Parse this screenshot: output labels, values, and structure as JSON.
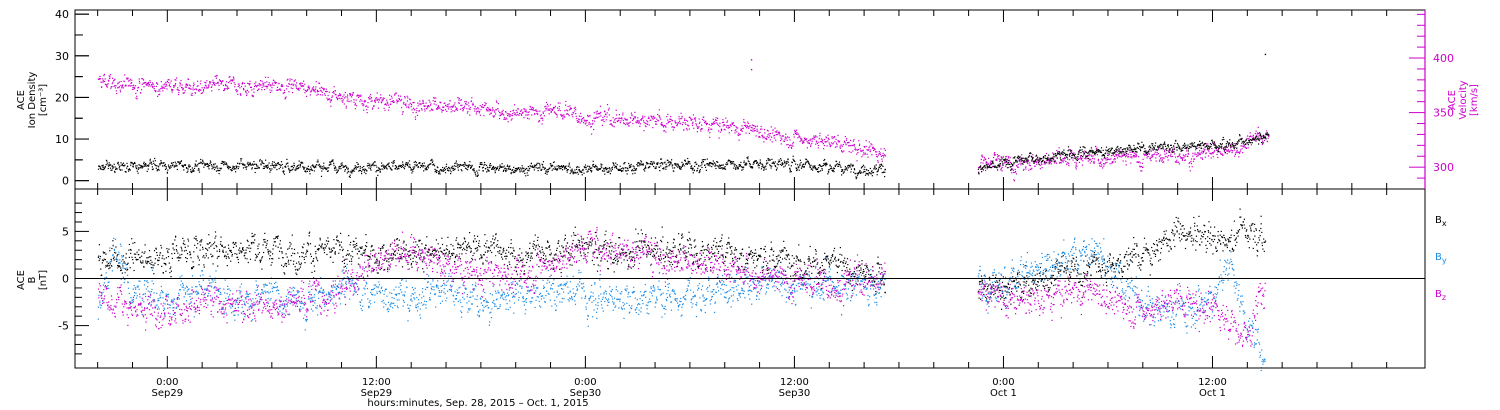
{
  "chart_data": [
    {
      "type": "scatter",
      "panel": "top",
      "ylabel_left": [
        "ACE",
        "Ion Density",
        "[cm⁻³]"
      ],
      "ylabel_right": [
        "ACE",
        "Velocity",
        "[km/s]"
      ],
      "left_ylim": [
        -2,
        41
      ],
      "left_yticks": [
        0,
        10,
        20,
        30,
        40
      ],
      "right_ylim": [
        280,
        444
      ],
      "right_yticks": [
        300,
        350,
        400
      ],
      "colors": {
        "density": "#000000",
        "velocity": "#cc00cc"
      },
      "gap_hours": [
        [
          41.2,
          46.5
        ]
      ],
      "series": [
        {
          "axis": "left",
          "points": [
            [
              -4,
              3.5
            ],
            [
              0,
              3.5
            ],
            [
              4,
              3.8
            ],
            [
              8,
              3.5
            ],
            [
              12,
              3.3
            ],
            [
              16,
              3.2
            ],
            [
              20,
              3.0
            ],
            [
              24,
              3.3
            ],
            [
              28,
              3.6
            ],
            [
              32,
              4.0
            ],
            [
              36,
              4.2
            ],
            [
              38,
              3.2
            ],
            [
              41,
              2.8
            ],
            [
              46.8,
              3.0
            ],
            [
              50,
              5.5
            ],
            [
              53,
              7.0
            ],
            [
              56,
              8.0
            ],
            [
              59,
              8.6
            ],
            [
              62,
              9.3
            ],
            [
              63.2,
              11.0
            ]
          ]
        },
        {
          "axis": "right",
          "points": [
            [
              -4,
              377
            ],
            [
              0,
              376
            ],
            [
              4,
              374
            ],
            [
              7,
              376
            ],
            [
              10,
              365
            ],
            [
              12,
              361
            ],
            [
              16,
              357
            ],
            [
              20,
              350
            ],
            [
              22,
              353
            ],
            [
              24,
              347
            ],
            [
              28,
              343
            ],
            [
              32,
              337
            ],
            [
              36,
              327
            ],
            [
              40,
              318
            ],
            [
              41,
              312
            ],
            [
              46.8,
              305
            ],
            [
              50,
              305
            ],
            [
              53,
              308
            ],
            [
              56,
              310
            ],
            [
              59,
              312
            ],
            [
              61.5,
              318
            ],
            [
              62,
              327
            ],
            [
              63.2,
              330
            ]
          ]
        }
      ],
      "outliers": [
        {
          "axis": "right",
          "x": 33.5,
          "y": 399
        },
        {
          "axis": "right",
          "x": 33.5,
          "y": 390
        },
        {
          "axis": "left",
          "x": 63,
          "y": 30.5
        }
      ]
    },
    {
      "type": "scatter",
      "panel": "bottom",
      "ylabel_left": [
        "ACE",
        "B",
        "[nT]"
      ],
      "ylim": [
        -9.5,
        9.5
      ],
      "yticks": [
        -5,
        0,
        5
      ],
      "zero_line": true,
      "legend": [
        "Bx",
        "By",
        "Bz"
      ],
      "legend_placement": "right",
      "colors": {
        "Bx": "#000000",
        "By": "#1a8ce6",
        "Bz": "#cc00cc"
      },
      "gap_hours": [
        [
          41.2,
          46.5
        ]
      ],
      "series": [
        {
          "name": "Bx",
          "points": [
            [
              -4,
              2.0
            ],
            [
              -2,
              2.0
            ],
            [
              0,
              2.6
            ],
            [
              2,
              3.0
            ],
            [
              4,
              3.4
            ],
            [
              6,
              3.2
            ],
            [
              8,
              2.8
            ],
            [
              10,
              2.8
            ],
            [
              12,
              2.6
            ],
            [
              14,
              2.6
            ],
            [
              16,
              3.0
            ],
            [
              18,
              3.4
            ],
            [
              20,
              2.6
            ],
            [
              22,
              3.0
            ],
            [
              24,
              3.3
            ],
            [
              26,
              3.1
            ],
            [
              28,
              3.2
            ],
            [
              30,
              3.0
            ],
            [
              32,
              2.9
            ],
            [
              34,
              2.5
            ],
            [
              36,
              2.0
            ],
            [
              38,
              1.5
            ],
            [
              40,
              0.6
            ],
            [
              41,
              0.4
            ],
            [
              46.8,
              -0.5
            ],
            [
              48,
              -1.5
            ],
            [
              50,
              0.0
            ],
            [
              52,
              1.0
            ],
            [
              54,
              1.5
            ],
            [
              56,
              2.5
            ],
            [
              58,
              5.0
            ],
            [
              60,
              4.5
            ],
            [
              61,
              4.2
            ],
            [
              62,
              5.5
            ],
            [
              63,
              4.0
            ]
          ]
        },
        {
          "name": "By",
          "points": [
            [
              -4,
              -3.0
            ],
            [
              -3,
              3.5
            ],
            [
              -2,
              -1.0
            ],
            [
              0,
              -2.0
            ],
            [
              2,
              -0.5
            ],
            [
              4,
              -2.0
            ],
            [
              6,
              -1.5
            ],
            [
              8,
              -2.5
            ],
            [
              10,
              -0.5
            ],
            [
              12,
              -1.5
            ],
            [
              14,
              -2.0
            ],
            [
              16,
              -1.0
            ],
            [
              18,
              -3.0
            ],
            [
              20,
              -1.5
            ],
            [
              22,
              -1.0
            ],
            [
              24,
              -1.5
            ],
            [
              26,
              -2.0
            ],
            [
              28,
              -1.8
            ],
            [
              30,
              -1.5
            ],
            [
              32,
              -1.0
            ],
            [
              34,
              -0.5
            ],
            [
              36,
              -0.5
            ],
            [
              38,
              -0.5
            ],
            [
              40,
              -0.5
            ],
            [
              41,
              -1.0
            ],
            [
              46.8,
              -0.5
            ],
            [
              48,
              -1.0
            ],
            [
              49,
              1.0
            ],
            [
              50,
              1.0
            ],
            [
              52,
              2.0
            ],
            [
              53,
              3.0
            ],
            [
              54,
              1.0
            ],
            [
              56,
              -2.5
            ],
            [
              58,
              -3.5
            ],
            [
              60,
              -2.0
            ],
            [
              61,
              2.0
            ],
            [
              62,
              -5.0
            ],
            [
              63,
              -8.0
            ]
          ]
        },
        {
          "name": "Bz",
          "points": [
            [
              -4,
              -1.5
            ],
            [
              -2,
              -3.0
            ],
            [
              0,
              -3.5
            ],
            [
              2,
              -2.5
            ],
            [
              4,
              -2.5
            ],
            [
              6,
              -3.0
            ],
            [
              8,
              -2.0
            ],
            [
              10,
              -1.0
            ],
            [
              12,
              2.0
            ],
            [
              14,
              3.0
            ],
            [
              16,
              1.0
            ],
            [
              18,
              0.5
            ],
            [
              20,
              0.5
            ],
            [
              22,
              1.5
            ],
            [
              24,
              3.5
            ],
            [
              26,
              3.0
            ],
            [
              28,
              2.5
            ],
            [
              30,
              2.0
            ],
            [
              32,
              1.0
            ],
            [
              34,
              0.5
            ],
            [
              36,
              0.0
            ],
            [
              38,
              -0.5
            ],
            [
              40,
              0.0
            ],
            [
              41,
              0.3
            ],
            [
              46.8,
              -1.0
            ],
            [
              48,
              -2.0
            ],
            [
              50,
              -2.5
            ],
            [
              52,
              -1.5
            ],
            [
              54,
              -2.0
            ],
            [
              56,
              -3.5
            ],
            [
              58,
              -2.5
            ],
            [
              60,
              -3.0
            ],
            [
              61,
              -4.5
            ],
            [
              62,
              -7.0
            ],
            [
              63,
              1.0
            ]
          ]
        }
      ]
    }
  ],
  "x_axis": {
    "xlim_hours": [
      -5.3,
      72.2
    ],
    "ticks": [
      {
        "hour": 0,
        "time": "0:00",
        "date": "Sep29"
      },
      {
        "hour": 12,
        "time": "12:00",
        "date": "Sep29"
      },
      {
        "hour": 24,
        "time": "0:00",
        "date": "Sep30"
      },
      {
        "hour": 36,
        "time": "12:00",
        "date": "Sep30"
      },
      {
        "hour": 48,
        "time": "0:00",
        "date": "Oct 1"
      },
      {
        "hour": 60,
        "time": "12:00",
        "date": "Oct 1"
      }
    ],
    "title": "hours:minutes, Sep. 28, 2015 – Oct. 1, 2015"
  }
}
